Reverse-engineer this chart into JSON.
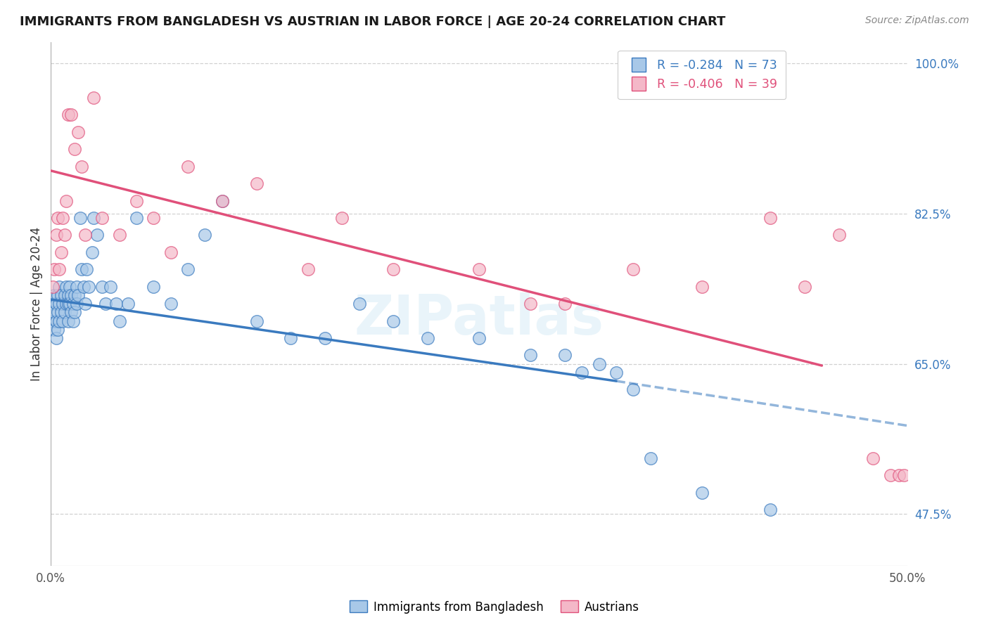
{
  "title": "IMMIGRANTS FROM BANGLADESH VS AUSTRIAN IN LABOR FORCE | AGE 20-24 CORRELATION CHART",
  "source": "Source: ZipAtlas.com",
  "ylabel": "In Labor Force | Age 20-24",
  "xlim": [
    0.0,
    0.5
  ],
  "ylim": [
    0.415,
    1.025
  ],
  "yticks_right": [
    1.0,
    0.825,
    0.65,
    0.475
  ],
  "yticklabels_right": [
    "100.0%",
    "82.5%",
    "65.0%",
    "47.5%"
  ],
  "blue_R": -0.284,
  "blue_N": 73,
  "pink_R": -0.406,
  "pink_N": 39,
  "blue_color": "#a8c8e8",
  "pink_color": "#f4b8c8",
  "blue_line_color": "#3a7abf",
  "pink_line_color": "#e0507a",
  "legend_label_blue": "Immigrants from Bangladesh",
  "legend_label_pink": "Austrians",
  "watermark": "ZIPatlas",
  "blue_line_x0": 0.0,
  "blue_line_y0": 0.725,
  "blue_line_x1": 0.33,
  "blue_line_y1": 0.63,
  "blue_line_ext_x1": 0.5,
  "blue_line_ext_y1": 0.578,
  "pink_line_x0": 0.0,
  "pink_line_y0": 0.875,
  "pink_line_x1": 0.45,
  "pink_line_y1": 0.648,
  "blue_x": [
    0.001,
    0.001,
    0.002,
    0.002,
    0.002,
    0.003,
    0.003,
    0.003,
    0.004,
    0.004,
    0.004,
    0.005,
    0.005,
    0.005,
    0.006,
    0.006,
    0.007,
    0.007,
    0.008,
    0.008,
    0.009,
    0.009,
    0.01,
    0.01,
    0.01,
    0.011,
    0.011,
    0.012,
    0.012,
    0.013,
    0.013,
    0.014,
    0.014,
    0.015,
    0.015,
    0.016,
    0.017,
    0.018,
    0.019,
    0.02,
    0.021,
    0.022,
    0.024,
    0.025,
    0.027,
    0.03,
    0.032,
    0.035,
    0.038,
    0.04,
    0.045,
    0.05,
    0.06,
    0.07,
    0.08,
    0.09,
    0.1,
    0.12,
    0.14,
    0.16,
    0.18,
    0.2,
    0.22,
    0.25,
    0.28,
    0.3,
    0.31,
    0.32,
    0.33,
    0.34,
    0.35,
    0.38,
    0.42
  ],
  "blue_y": [
    0.72,
    0.7,
    0.73,
    0.71,
    0.69,
    0.72,
    0.7,
    0.68,
    0.73,
    0.71,
    0.69,
    0.74,
    0.72,
    0.7,
    0.73,
    0.71,
    0.72,
    0.7,
    0.73,
    0.71,
    0.74,
    0.72,
    0.73,
    0.72,
    0.7,
    0.72,
    0.74,
    0.73,
    0.71,
    0.72,
    0.7,
    0.73,
    0.71,
    0.74,
    0.72,
    0.73,
    0.82,
    0.76,
    0.74,
    0.72,
    0.76,
    0.74,
    0.78,
    0.82,
    0.8,
    0.74,
    0.72,
    0.74,
    0.72,
    0.7,
    0.72,
    0.82,
    0.74,
    0.72,
    0.76,
    0.8,
    0.84,
    0.7,
    0.68,
    0.68,
    0.72,
    0.7,
    0.68,
    0.68,
    0.66,
    0.66,
    0.64,
    0.65,
    0.64,
    0.62,
    0.54,
    0.5,
    0.48
  ],
  "pink_x": [
    0.001,
    0.002,
    0.003,
    0.004,
    0.005,
    0.006,
    0.007,
    0.008,
    0.009,
    0.01,
    0.012,
    0.014,
    0.016,
    0.018,
    0.02,
    0.025,
    0.03,
    0.04,
    0.05,
    0.06,
    0.07,
    0.08,
    0.1,
    0.12,
    0.15,
    0.17,
    0.2,
    0.25,
    0.28,
    0.3,
    0.34,
    0.38,
    0.42,
    0.44,
    0.46,
    0.48,
    0.49,
    0.495,
    0.498
  ],
  "pink_y": [
    0.74,
    0.76,
    0.8,
    0.82,
    0.76,
    0.78,
    0.82,
    0.8,
    0.84,
    0.94,
    0.94,
    0.9,
    0.92,
    0.88,
    0.8,
    0.96,
    0.82,
    0.8,
    0.84,
    0.82,
    0.78,
    0.88,
    0.84,
    0.86,
    0.76,
    0.82,
    0.76,
    0.76,
    0.72,
    0.72,
    0.76,
    0.74,
    0.82,
    0.74,
    0.8,
    0.54,
    0.52,
    0.52,
    0.52
  ]
}
